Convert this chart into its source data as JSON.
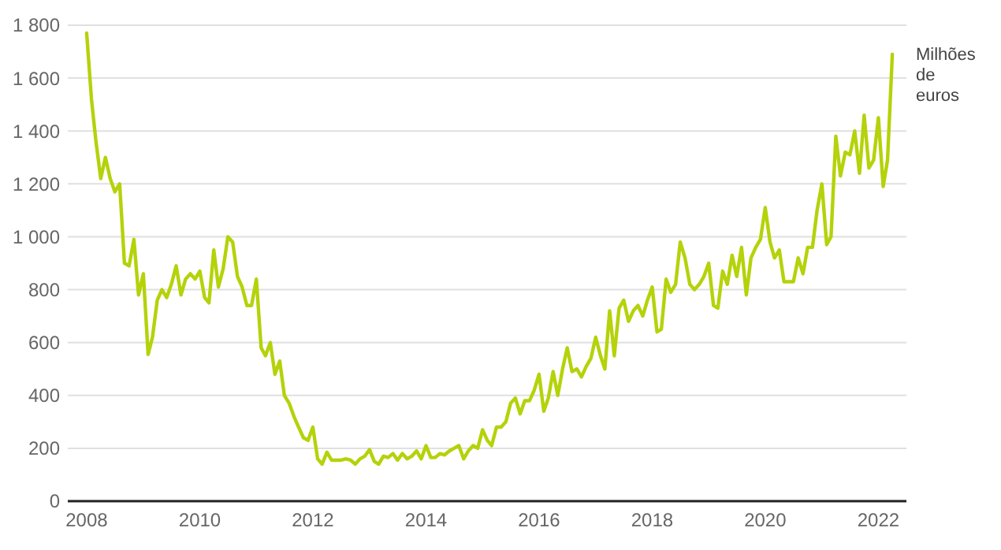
{
  "chart_data": {
    "type": "line",
    "ylabel": "Milhões de euros",
    "x": [
      "2008-01",
      "2008-02",
      "2008-03",
      "2008-04",
      "2008-05",
      "2008-06",
      "2008-07",
      "2008-08",
      "2008-09",
      "2008-10",
      "2008-11",
      "2008-12",
      "2009-01",
      "2009-02",
      "2009-03",
      "2009-04",
      "2009-05",
      "2009-06",
      "2009-07",
      "2009-08",
      "2009-09",
      "2009-10",
      "2009-11",
      "2009-12",
      "2010-01",
      "2010-02",
      "2010-03",
      "2010-04",
      "2010-05",
      "2010-06",
      "2010-07",
      "2010-08",
      "2010-09",
      "2010-10",
      "2010-11",
      "2010-12",
      "2011-01",
      "2011-02",
      "2011-03",
      "2011-04",
      "2011-05",
      "2011-06",
      "2011-07",
      "2011-08",
      "2011-09",
      "2011-10",
      "2011-11",
      "2011-12",
      "2012-01",
      "2012-02",
      "2012-03",
      "2012-04",
      "2012-05",
      "2012-06",
      "2012-07",
      "2012-08",
      "2012-09",
      "2012-10",
      "2012-11",
      "2012-12",
      "2013-01",
      "2013-02",
      "2013-03",
      "2013-04",
      "2013-05",
      "2013-06",
      "2013-07",
      "2013-08",
      "2013-09",
      "2013-10",
      "2013-11",
      "2013-12",
      "2014-01",
      "2014-02",
      "2014-03",
      "2014-04",
      "2014-05",
      "2014-06",
      "2014-07",
      "2014-08",
      "2014-09",
      "2014-10",
      "2014-11",
      "2014-12",
      "2015-01",
      "2015-02",
      "2015-03",
      "2015-04",
      "2015-05",
      "2015-06",
      "2015-07",
      "2015-08",
      "2015-09",
      "2015-10",
      "2015-11",
      "2015-12",
      "2016-01",
      "2016-02",
      "2016-03",
      "2016-04",
      "2016-05",
      "2016-06",
      "2016-07",
      "2016-08",
      "2016-09",
      "2016-10",
      "2016-11",
      "2016-12",
      "2017-01",
      "2017-02",
      "2017-03",
      "2017-04",
      "2017-05",
      "2017-06",
      "2017-07",
      "2017-08",
      "2017-09",
      "2017-10",
      "2017-11",
      "2017-12",
      "2018-01",
      "2018-02",
      "2018-03",
      "2018-04",
      "2018-05",
      "2018-06",
      "2018-07",
      "2018-08",
      "2018-09",
      "2018-10",
      "2018-11",
      "2018-12",
      "2019-01",
      "2019-02",
      "2019-03",
      "2019-04",
      "2019-05",
      "2019-06",
      "2019-07",
      "2019-08",
      "2019-09",
      "2019-10",
      "2019-11",
      "2019-12",
      "2020-01",
      "2020-02",
      "2020-03",
      "2020-04",
      "2020-05",
      "2020-06",
      "2020-07",
      "2020-08",
      "2020-09",
      "2020-10",
      "2020-11",
      "2020-12",
      "2021-01",
      "2021-02",
      "2021-03",
      "2021-04",
      "2021-05",
      "2021-06",
      "2021-07",
      "2021-08",
      "2021-09",
      "2021-10",
      "2021-11",
      "2021-12",
      "2022-01",
      "2022-02",
      "2022-03",
      "2022-04"
    ],
    "series": [
      {
        "color": "#b5d20a",
        "values": [
          1770,
          1520,
          1360,
          1220,
          1300,
          1220,
          1170,
          1200,
          900,
          890,
          990,
          780,
          860,
          555,
          620,
          760,
          800,
          770,
          820,
          890,
          780,
          840,
          860,
          840,
          870,
          770,
          750,
          950,
          810,
          880,
          1000,
          980,
          850,
          810,
          740,
          740,
          840,
          580,
          550,
          600,
          480,
          530,
          400,
          370,
          320,
          280,
          240,
          230,
          280,
          160,
          140,
          185,
          155,
          155,
          155,
          160,
          155,
          140,
          160,
          170,
          195,
          150,
          140,
          170,
          165,
          180,
          155,
          180,
          160,
          170,
          190,
          160,
          210,
          165,
          165,
          180,
          175,
          190,
          200,
          210,
          160,
          190,
          210,
          200,
          270,
          230,
          210,
          280,
          280,
          300,
          370,
          390,
          330,
          380,
          380,
          420,
          480,
          340,
          390,
          490,
          400,
          500,
          580,
          490,
          500,
          470,
          510,
          540,
          620,
          550,
          500,
          720,
          550,
          730,
          760,
          680,
          720,
          740,
          700,
          760,
          810,
          640,
          650,
          840,
          790,
          820,
          980,
          920,
          820,
          800,
          820,
          850,
          900,
          740,
          730,
          870,
          820,
          930,
          850,
          960,
          780,
          920,
          960,
          990,
          1110,
          980,
          920,
          950,
          830,
          830,
          830,
          920,
          860,
          960,
          960,
          1100,
          1200,
          970,
          1000,
          1380,
          1230,
          1320,
          1310,
          1400,
          1240,
          1460,
          1260,
          1290,
          1450,
          1190,
          1290,
          1690
        ]
      }
    ],
    "xlim": [
      "2007-09",
      "2022-07"
    ],
    "xticks": [
      {
        "value": "2008",
        "label": "2008"
      },
      {
        "value": "2010",
        "label": "2010"
      },
      {
        "value": "2012",
        "label": "2012"
      },
      {
        "value": "2014",
        "label": "2014"
      },
      {
        "value": "2016",
        "label": "2016"
      },
      {
        "value": "2018",
        "label": "2018"
      },
      {
        "value": "2020",
        "label": "2020"
      },
      {
        "value": "2022",
        "label": "2022"
      }
    ],
    "ylim": [
      0,
      1800
    ],
    "yticks": [
      0,
      200,
      400,
      600,
      800,
      {
        "value": 1000,
        "label": "1 000"
      },
      {
        "value": 1200,
        "label": "1 200"
      },
      {
        "value": 1400,
        "label": "1 400"
      },
      {
        "value": 1600,
        "label": "1 600"
      },
      {
        "value": 1800,
        "label": "1 800"
      }
    ],
    "grid": "y",
    "marker": "none",
    "line_style": "solid"
  }
}
